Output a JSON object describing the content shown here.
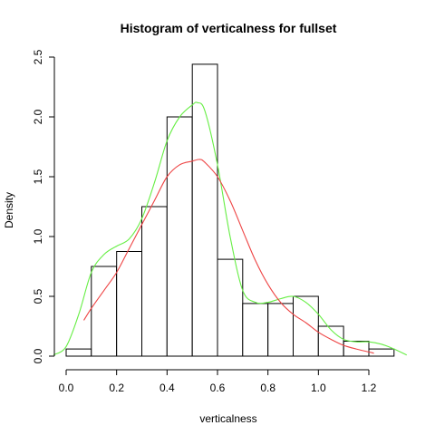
{
  "chart_data": {
    "type": "bar",
    "title": "Histogram of verticalness for fullset",
    "xlabel": "verticalness",
    "ylabel": "Density",
    "xlim": [
      0.0,
      1.3
    ],
    "ylim": [
      0.0,
      2.5
    ],
    "xticks": [
      "0.0",
      "0.2",
      "0.4",
      "0.6",
      "0.8",
      "1.0",
      "1.2"
    ],
    "yticks": [
      "0.0",
      "0.5",
      "1.0",
      "1.5",
      "2.0",
      "2.5"
    ],
    "bins": [
      {
        "x0": 0.0,
        "x1": 0.1,
        "density": 0.06
      },
      {
        "x0": 0.1,
        "x1": 0.2,
        "density": 0.75
      },
      {
        "x0": 0.2,
        "x1": 0.3,
        "density": 0.875
      },
      {
        "x0": 0.3,
        "x1": 0.4,
        "density": 1.25
      },
      {
        "x0": 0.4,
        "x1": 0.5,
        "density": 2.0
      },
      {
        "x0": 0.5,
        "x1": 0.6,
        "density": 2.44
      },
      {
        "x0": 0.6,
        "x1": 0.7,
        "density": 0.81
      },
      {
        "x0": 0.7,
        "x1": 0.8,
        "density": 0.44
      },
      {
        "x0": 0.8,
        "x1": 0.9,
        "density": 0.44
      },
      {
        "x0": 0.9,
        "x1": 1.0,
        "density": 0.5
      },
      {
        "x0": 1.0,
        "x1": 1.1,
        "density": 0.25
      },
      {
        "x0": 1.1,
        "x1": 1.2,
        "density": 0.125
      },
      {
        "x0": 1.2,
        "x1": 1.3,
        "density": 0.06
      }
    ],
    "series": [
      {
        "color": "#66ee44",
        "x": [
          -0.05,
          0.0,
          0.05,
          0.1,
          0.15,
          0.2,
          0.25,
          0.3,
          0.35,
          0.4,
          0.45,
          0.5,
          0.52,
          0.55,
          0.6,
          0.65,
          0.7,
          0.75,
          0.8,
          0.85,
          0.9,
          0.95,
          1.0,
          1.05,
          1.1,
          1.15,
          1.2,
          1.25,
          1.3,
          1.35
        ],
        "y": [
          0.01,
          0.08,
          0.35,
          0.7,
          0.85,
          0.92,
          0.98,
          1.15,
          1.45,
          1.8,
          2.0,
          2.1,
          2.12,
          2.05,
          1.6,
          1.0,
          0.55,
          0.45,
          0.45,
          0.48,
          0.5,
          0.45,
          0.35,
          0.22,
          0.14,
          0.12,
          0.12,
          0.1,
          0.06,
          0.01
        ]
      },
      {
        "color": "#ee4444",
        "x": [
          0.07,
          0.1,
          0.15,
          0.2,
          0.25,
          0.3,
          0.35,
          0.4,
          0.45,
          0.5,
          0.53,
          0.55,
          0.6,
          0.65,
          0.7,
          0.75,
          0.8,
          0.85,
          0.9,
          0.95,
          1.0,
          1.05,
          1.1,
          1.15,
          1.2,
          1.22
        ],
        "y": [
          0.3,
          0.4,
          0.55,
          0.7,
          0.9,
          1.1,
          1.3,
          1.5,
          1.6,
          1.63,
          1.645,
          1.62,
          1.5,
          1.3,
          1.05,
          0.8,
          0.6,
          0.45,
          0.35,
          0.28,
          0.2,
          0.14,
          0.09,
          0.06,
          0.035,
          0.025
        ]
      }
    ]
  }
}
